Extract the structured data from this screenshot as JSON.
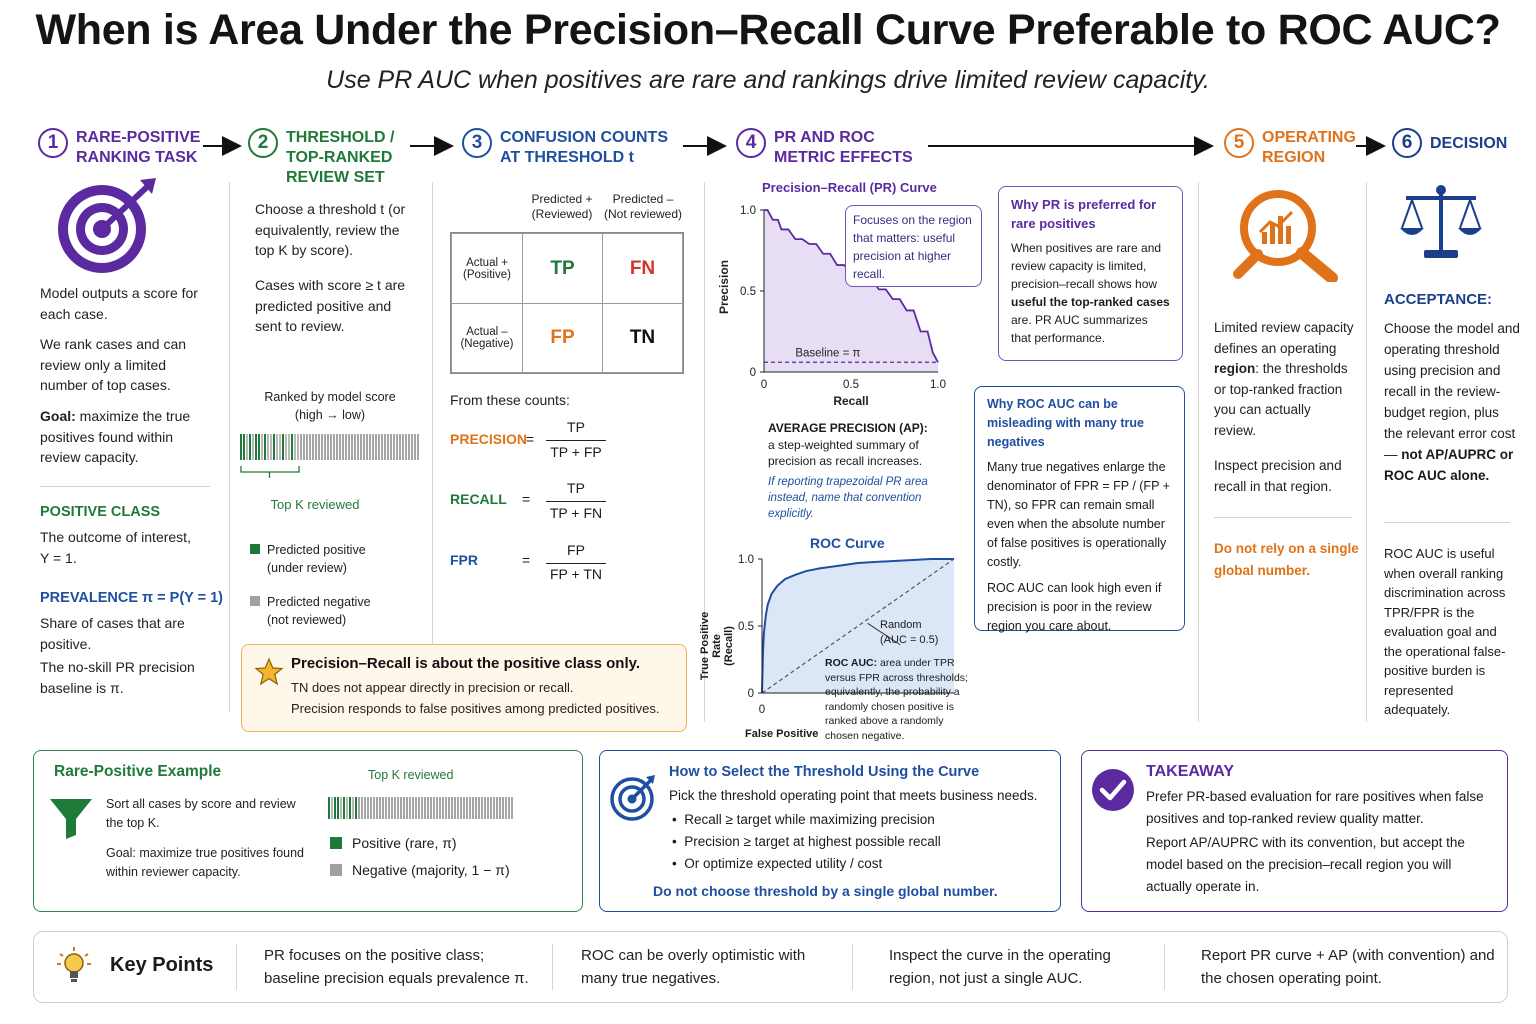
{
  "title": "When is Area Under the Precision–Recall Curve Preferable to ROC AUC?",
  "subtitle": "Use PR AUC when positives are rare and rankings drive limited review capacity.",
  "colors": {
    "purple": "#5b2aa0",
    "green": "#1f7a3a",
    "blue": "#1f4fa0",
    "orange": "#e0731a",
    "navy": "#1b3f8a",
    "red": "#d6332b"
  },
  "steps": [
    {
      "num": "1",
      "title_l1": "RARE-POSITIVE",
      "title_l2": "RANKING TASK"
    },
    {
      "num": "2",
      "title_l1": "THRESHOLD /",
      "title_l2": "TOP-RANKED",
      "title_l3": "REVIEW SET"
    },
    {
      "num": "3",
      "title_l1": "CONFUSION COUNTS",
      "title_l2": "AT THRESHOLD t"
    },
    {
      "num": "4",
      "title_l1": "PR AND ROC",
      "title_l2": "METRIC EFFECTS"
    },
    {
      "num": "5",
      "title_l1": "OPERATING",
      "title_l2": "REGION"
    },
    {
      "num": "6",
      "title_l1": "DECISION"
    }
  ],
  "col1": {
    "p1": "Model outputs a score for each case.",
    "p2": "We rank cases and can review only a limited number of top cases.",
    "p3_bold": "Goal:",
    "p3": " maximize the true positives found within review capacity.",
    "pos_head": "POSITIVE CLASS",
    "pos_text": "The outcome of interest, Y = 1.",
    "prev_head": "PREVALENCE π = P(Y = 1)",
    "prev_text1": "Share of cases that are positive.",
    "prev_text2": "The no-skill PR precision baseline is π."
  },
  "col2": {
    "p1": "Choose a threshold t (or equivalently, review the top K by score).",
    "p2": "Cases with score ≥ t are predicted positive and sent to review.",
    "ranked_label1": "Ranked by model score",
    "ranked_label2": "(high → low)",
    "topk": "Top K reviewed",
    "legend_pos1": "Predicted positive",
    "legend_pos2": "(under review)",
    "legend_neg1": "Predicted negative",
    "legend_neg2": "(not reviewed)"
  },
  "col3": {
    "pred_pos1": "Predicted +",
    "pred_pos2": "(Reviewed)",
    "pred_neg1": "Predicted –",
    "pred_neg2": "(Not reviewed)",
    "act_pos1": "Actual +",
    "act_pos2": "(Positive)",
    "act_neg1": "Actual –",
    "act_neg2": "(Negative)",
    "tp": "TP",
    "fn": "FN",
    "fp": "FP",
    "tn": "TN",
    "from": "From these counts:",
    "precision": "PRECISION",
    "recall": "RECALL",
    "fpr": "FPR",
    "eq": "=",
    "prec_num": "TP",
    "prec_den": "TP + FP",
    "rec_num": "TP",
    "rec_den": "TP + FN",
    "fpr_num": "FP",
    "fpr_den": "FP + TN"
  },
  "callout": {
    "title": "Precision–Recall is about the positive class only.",
    "l1": "TN does not appear directly in precision or recall.",
    "l2": "Precision responds to false positives among predicted positives."
  },
  "pr_chart": {
    "title": "Precision–Recall (PR) Curve",
    "ylabel": "Precision",
    "xlabel": "Recall",
    "y_ticks": [
      "1.0",
      "0.5",
      "0"
    ],
    "x_ticks": [
      "0",
      "0.5",
      "1.0"
    ],
    "baseline_label": "Baseline = π",
    "note": "Focuses on the region that matters: useful precision at higher recall."
  },
  "chart_data": [
    {
      "type": "line",
      "title": "Precision–Recall (PR) Curve",
      "xlabel": "Recall",
      "ylabel": "Precision",
      "xlim": [
        0,
        1
      ],
      "ylim": [
        0,
        1
      ],
      "x": [
        0,
        0.02,
        0.05,
        0.08,
        0.1,
        0.14,
        0.18,
        0.22,
        0.26,
        0.3,
        0.34,
        0.38,
        0.42,
        0.46,
        0.5,
        0.54,
        0.58,
        0.62,
        0.66,
        0.7,
        0.74,
        0.78,
        0.82,
        0.86,
        0.9,
        0.94,
        0.97,
        1.0
      ],
      "series": [
        {
          "values": [
            1.0,
            1.0,
            0.94,
            0.94,
            0.88,
            0.88,
            0.82,
            0.82,
            0.79,
            0.79,
            0.73,
            0.73,
            0.66,
            0.66,
            0.62,
            0.62,
            0.57,
            0.57,
            0.51,
            0.51,
            0.45,
            0.45,
            0.38,
            0.38,
            0.25,
            0.25,
            0.12,
            0.06
          ]
        }
      ],
      "baseline": 0.06
    },
    {
      "type": "line",
      "title": "ROC Curve",
      "xlabel": "False Positive",
      "ylabel": "True Positive Rate (Recall)",
      "xlim": [
        0,
        1
      ],
      "ylim": [
        0,
        1
      ],
      "x": [
        0,
        0.005,
        0.01,
        0.02,
        0.03,
        0.05,
        0.08,
        0.12,
        0.17,
        0.23,
        0.3,
        0.4,
        0.5,
        0.62,
        0.75,
        0.88,
        1.0
      ],
      "series": [
        {
          "values": [
            0,
            0.3,
            0.45,
            0.58,
            0.66,
            0.74,
            0.8,
            0.85,
            0.88,
            0.91,
            0.93,
            0.95,
            0.97,
            0.98,
            0.99,
            1.0,
            1.0
          ]
        },
        {
          "name": "Random",
          "values": [
            0,
            0.005,
            0.01,
            0.02,
            0.03,
            0.05,
            0.08,
            0.12,
            0.17,
            0.23,
            0.3,
            0.4,
            0.5,
            0.62,
            0.75,
            0.88,
            1.0
          ]
        }
      ]
    }
  ],
  "ap": {
    "head": "AVERAGE PRECISION (AP):",
    "text": "a step-weighted summary of precision as recall increases.",
    "note": "If reporting trapezoidal PR area instead, name that convention explicitly."
  },
  "roc_chart": {
    "title": "ROC Curve",
    "ylabel1": "True Positive Rate",
    "ylabel2": "(Recall)",
    "xlabel": "False Positive",
    "y_ticks": [
      "1.0",
      "0.5",
      "0"
    ],
    "x_tick0": "0",
    "random1": "Random",
    "random2": "(AUC = 0.5)",
    "desc_bold": "ROC AUC:",
    "desc": " area under TPR versus FPR across thresholds; equivalently, the probability a randomly chosen positive is ranked above a randomly chosen negative."
  },
  "why_pr": {
    "title": "Why PR is preferred for rare positives",
    "t1": "When positives are rare and review capacity is limited, precision–recall shows how ",
    "t_bold": "useful the top-ranked cases",
    "t2": " are. PR AUC summarizes that performance."
  },
  "why_roc": {
    "title": "Why ROC AUC can be misleading with many true negatives",
    "t1": "Many true negatives enlarge the denominator of FPR = FP / (FP + TN), so FPR can remain small even when the absolute number of false positives is operationally costly.",
    "t2": "ROC AUC can look high even if precision is poor in the review region you care about."
  },
  "col5": {
    "t1a": "Limited review capacity defines an operating ",
    "t1b": "region",
    "t1c": ": the thresholds or top-ranked fraction you can actually review.",
    "t2": "Inspect precision and recall in that region.",
    "warn": "Do not rely on a single global number."
  },
  "col6": {
    "acc_head": "ACCEPTANCE:",
    "acc": "Choose the model and operating threshold using precision and recall in the review-budget region, plus the relevant error cost—",
    "acc_bold": "not AP/AUPRC or ROC AUC alone.",
    "roc_use": "ROC AUC is useful when overall ranking discrimination across TPR/FPR is the evaluation goal and the operational false-positive burden is represented adequately."
  },
  "example": {
    "title": "Rare-Positive Example",
    "t1": "Sort all cases by score and review the top K.",
    "t2": "Goal: maximize true positives found within reviewer capacity.",
    "topk": "Top K reviewed",
    "pos": "Positive (rare, π)",
    "neg": "Negative (majority, 1 − π)"
  },
  "select": {
    "title": "How to Select the Threshold Using the Curve",
    "intro": "Pick the threshold operating point that meets business needs.",
    "b1": "Recall ≥ target while maximizing precision",
    "b2": "Precision ≥ target at highest possible recall",
    "b3": "Or optimize expected utility / cost",
    "foot": "Do not choose threshold by a single global number."
  },
  "takeaway": {
    "title": "TAKEAWAY",
    "t1": "Prefer PR-based evaluation for rare positives when false positives and top-ranked review quality matter.",
    "t2": "Report AP/AUPRC with its convention, but accept the model based on the precision–recall region you will actually operate in."
  },
  "keypoints": {
    "title": "Key Points",
    "k1": "PR focuses on the positive class; baseline precision equals prevalence π.",
    "k2": "ROC can be overly optimistic with many true negatives.",
    "k3": "Inspect the curve in the operating region, not just a single AUC.",
    "k4": "Report PR curve + AP (with convention) and the chosen operating point."
  }
}
